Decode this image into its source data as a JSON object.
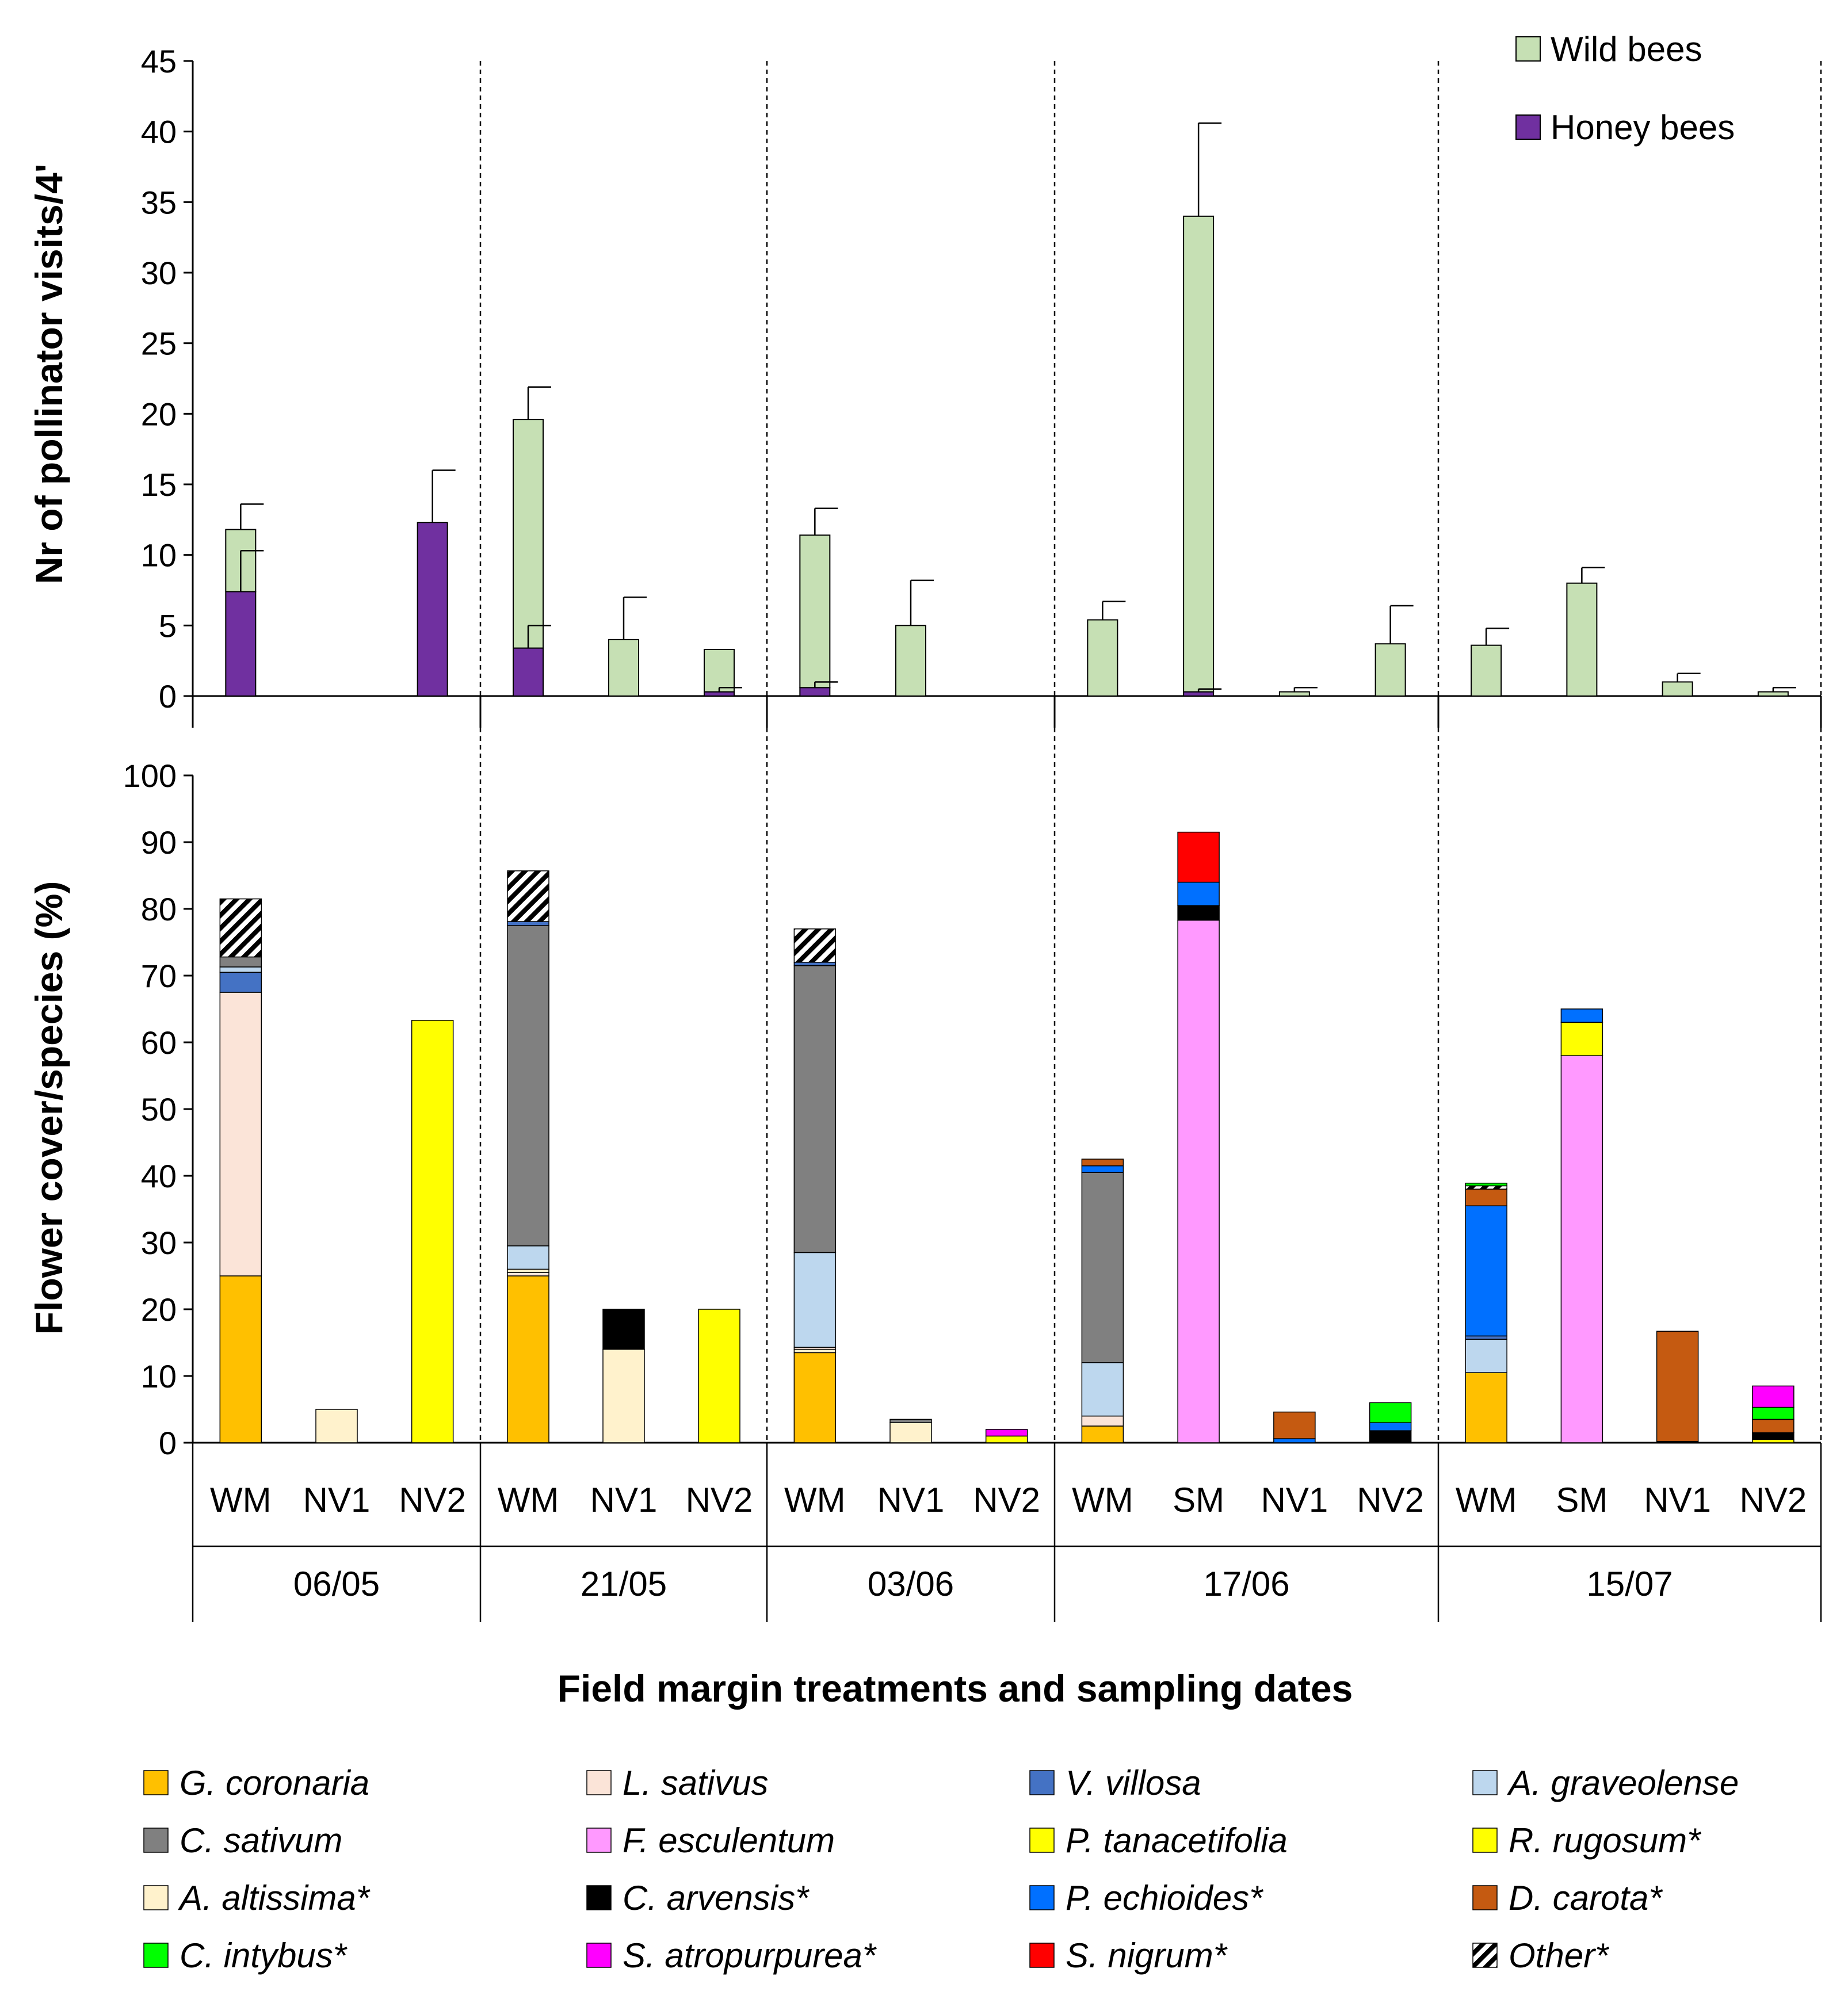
{
  "chart_data": [
    {
      "type": "bar",
      "stacked": true,
      "ylabel": "Nr of  pollinator visits/4'",
      "ylim": [
        0,
        45
      ],
      "yticks": [
        "0",
        "5",
        "10",
        "15",
        "20",
        "25",
        "30",
        "35",
        "40",
        "45"
      ],
      "legend": [
        "Wild bees",
        "Honey bees"
      ],
      "legend_position": "top-right",
      "groups": [
        {
          "date": "06/05",
          "bars": [
            {
              "cat": "WM",
              "honey": 7.4,
              "wild": 4.4,
              "err_honey": 2.9,
              "err_total": 1.8
            },
            {
              "cat": "NV1",
              "honey": 0,
              "wild": 0
            },
            {
              "cat": "NV2",
              "honey": 12.3,
              "wild": 0,
              "err_honey": 3.7
            }
          ]
        },
        {
          "date": "21/05",
          "bars": [
            {
              "cat": "WM",
              "honey": 3.4,
              "wild": 16.2,
              "err_honey": 1.6,
              "err_total": 2.3
            },
            {
              "cat": "NV1",
              "honey": 0,
              "wild": 4.0,
              "err_total": 3.0
            },
            {
              "cat": "NV2",
              "honey": 0.3,
              "wild": 3.0,
              "err_honey": 0.3
            }
          ]
        },
        {
          "date": "03/06",
          "bars": [
            {
              "cat": "WM",
              "honey": 0.6,
              "wild": 10.8,
              "err_honey": 0.4,
              "err_total": 1.9
            },
            {
              "cat": "NV1",
              "honey": 0,
              "wild": 5.0,
              "err_total": 3.2
            },
            {
              "cat": "NV2",
              "honey": 0,
              "wild": 0
            }
          ]
        },
        {
          "date": "17/06",
          "bars": [
            {
              "cat": "WM",
              "honey": 0,
              "wild": 5.4,
              "err_total": 1.3
            },
            {
              "cat": "SM",
              "honey": 0.3,
              "wild": 33.7,
              "err_honey": 0.2,
              "err_total": 6.6
            },
            {
              "cat": "NV1",
              "honey": 0,
              "wild": 0.3,
              "err_total": 0.3
            },
            {
              "cat": "NV2",
              "honey": 0,
              "wild": 3.7,
              "err_total": 2.7
            }
          ]
        },
        {
          "date": "15/07",
          "bars": [
            {
              "cat": "WM",
              "honey": 0,
              "wild": 3.6,
              "err_total": 1.2
            },
            {
              "cat": "SM",
              "honey": 0,
              "wild": 8.0,
              "err_total": 1.1
            },
            {
              "cat": "NV1",
              "honey": 0,
              "wild": 1.0,
              "err_total": 0.6
            },
            {
              "cat": "NV2",
              "honey": 0,
              "wild": 0.3,
              "err_total": 0.3
            }
          ]
        }
      ]
    },
    {
      "type": "bar",
      "stacked": true,
      "ylabel": "Flower cover/species (%)",
      "xlabel": "Field margin treatments and sampling dates",
      "ylim": [
        0,
        100
      ],
      "yticks": [
        "0",
        "10",
        "20",
        "30",
        "40",
        "50",
        "60",
        "70",
        "80",
        "90",
        "100"
      ],
      "species": [
        {
          "key": "gc",
          "name": "G. coronaria",
          "color": "#FFC000"
        },
        {
          "key": "ls",
          "name": "L. sativus",
          "color": "#FBE4D8"
        },
        {
          "key": "vv",
          "name": "V. villosa",
          "color": "#4472C4"
        },
        {
          "key": "ag",
          "name": "A. graveolense",
          "color": "#BDD7EE"
        },
        {
          "key": "cs",
          "name": "C. sativum",
          "color": "#808080"
        },
        {
          "key": "fe",
          "name": "F. esculentum",
          "color": "#FF99FF"
        },
        {
          "key": "pt",
          "name": "P. tanacetifolia",
          "color": "#FFFF00"
        },
        {
          "key": "rr",
          "name": "R. rugosum*",
          "color": "#FFFF00"
        },
        {
          "key": "aa",
          "name": "A. altissima*",
          "color": "#FFF2CC"
        },
        {
          "key": "ca",
          "name": "C. arvensis*",
          "color": "#000000"
        },
        {
          "key": "pe",
          "name": "P. echioides*",
          "color": "#0070FF"
        },
        {
          "key": "dc",
          "name": "D. carota*",
          "color": "#C55A11"
        },
        {
          "key": "ci",
          "name": "C. intybus*",
          "color": "#00FF00"
        },
        {
          "key": "sa",
          "name": "S. atropurpurea*",
          "color": "#FF00FF"
        },
        {
          "key": "sn",
          "name": "S. nigrum*",
          "color": "#FF0000"
        },
        {
          "key": "ot",
          "name": "Other*",
          "color": "pattern"
        }
      ],
      "groups": [
        {
          "date": "06/05",
          "bars": [
            {
              "cat": "WM",
              "stack": [
                [
                  "gc",
                  25
                ],
                [
                  "ls",
                  42.5
                ],
                [
                  "vv",
                  3
                ],
                [
                  "ag",
                  0.8
                ],
                [
                  "cs",
                  1.5
                ],
                [
                  "ot",
                  8.7
                ]
              ]
            },
            {
              "cat": "NV1",
              "stack": [
                [
                  "aa",
                  5
                ]
              ]
            },
            {
              "cat": "NV2",
              "stack": [
                [
                  "rr",
                  63.3
                ]
              ]
            }
          ]
        },
        {
          "date": "21/05",
          "bars": [
            {
              "cat": "WM",
              "stack": [
                [
                  "gc",
                  25
                ],
                [
                  "ls",
                  0.5
                ],
                [
                  "aa",
                  0.5
                ],
                [
                  "ag",
                  3.5
                ],
                [
                  "cs",
                  48
                ],
                [
                  "vv",
                  0.6
                ],
                [
                  "ot",
                  7.6
                ]
              ]
            },
            {
              "cat": "NV1",
              "stack": [
                [
                  "aa",
                  14
                ],
                [
                  "ca",
                  6
                ]
              ]
            },
            {
              "cat": "NV2",
              "stack": [
                [
                  "rr",
                  20
                ]
              ]
            }
          ]
        },
        {
          "date": "03/06",
          "bars": [
            {
              "cat": "WM",
              "stack": [
                [
                  "gc",
                  13.5
                ],
                [
                  "aa",
                  0.5
                ],
                [
                  "ls",
                  0.3
                ],
                [
                  "ag",
                  14.2
                ],
                [
                  "cs",
                  43
                ],
                [
                  "vv",
                  0.5
                ],
                [
                  "ot",
                  5
                ]
              ]
            },
            {
              "cat": "NV1",
              "stack": [
                [
                  "aa",
                  3
                ],
                [
                  "cs",
                  0.5
                ]
              ]
            },
            {
              "cat": "NV2",
              "stack": [
                [
                  "rr",
                  1
                ],
                [
                  "sa",
                  1
                ]
              ]
            }
          ]
        },
        {
          "date": "17/06",
          "bars": [
            {
              "cat": "WM",
              "stack": [
                [
                  "gc",
                  2.5
                ],
                [
                  "ls",
                  1.5
                ],
                [
                  "ag",
                  8
                ],
                [
                  "cs",
                  28.5
                ],
                [
                  "pe",
                  1
                ],
                [
                  "dc",
                  1
                ]
              ]
            },
            {
              "cat": "SM",
              "stack": [
                [
                  "fe",
                  78.3
                ],
                [
                  "ca",
                  2.2
                ],
                [
                  "pe",
                  3.5
                ],
                [
                  "sn",
                  7.5
                ]
              ]
            },
            {
              "cat": "NV1",
              "stack": [
                [
                  "pe",
                  0.6
                ],
                [
                  "dc",
                  4
                ]
              ]
            },
            {
              "cat": "NV2",
              "stack": [
                [
                  "ca",
                  1.8
                ],
                [
                  "pe",
                  1.2
                ],
                [
                  "ci",
                  3
                ]
              ]
            }
          ]
        },
        {
          "date": "15/07",
          "bars": [
            {
              "cat": "WM",
              "stack": [
                [
                  "gc",
                  10.5
                ],
                [
                  "ag",
                  5
                ],
                [
                  "vv",
                  0.5
                ],
                [
                  "pe",
                  19.5
                ],
                [
                  "dc",
                  2.5
                ],
                [
                  "ot",
                  0.5
                ],
                [
                  "ci",
                  0.4
                ]
              ]
            },
            {
              "cat": "SM",
              "stack": [
                [
                  "fe",
                  58
                ],
                [
                  "rr",
                  5
                ],
                [
                  "pe",
                  2
                ]
              ]
            },
            {
              "cat": "NV1",
              "stack": [
                [
                  "ca",
                  0.2
                ],
                [
                  "dc",
                  16.5
                ]
              ]
            },
            {
              "cat": "NV2",
              "stack": [
                [
                  "rr",
                  0.5
                ],
                [
                  "ca",
                  1
                ],
                [
                  "dc",
                  2
                ],
                [
                  "ci",
                  1.8
                ],
                [
                  "sa",
                  3.2
                ]
              ]
            }
          ]
        }
      ]
    }
  ]
}
